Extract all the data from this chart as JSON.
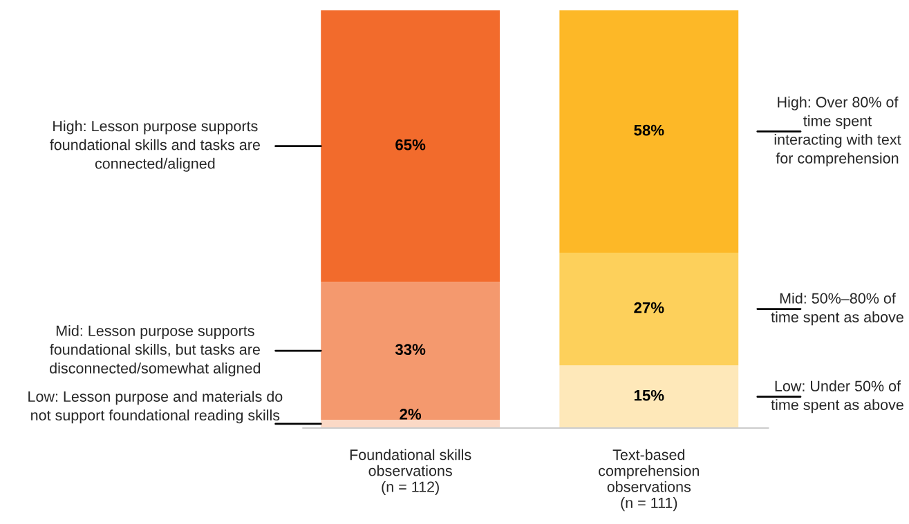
{
  "chart_data": {
    "type": "bar",
    "stacked": true,
    "categories": [
      "Foundational skills\nobservations\n(n = 112)",
      "Text-based\ncomprehension\nobservations\n(n = 111)"
    ],
    "series": [
      {
        "colors": [
          "#fbd9c6",
          "#fee8b9"
        ],
        "values": [
          2,
          15
        ],
        "value_labels": [
          "2%",
          "15%"
        ]
      },
      {
        "colors": [
          "#f4996e",
          "#fdd05b"
        ],
        "values": [
          33,
          27
        ],
        "value_labels": [
          "33%",
          "27%"
        ]
      },
      {
        "colors": [
          "#f26b2c",
          "#fdb827"
        ],
        "values": [
          65,
          58
        ],
        "value_labels": [
          "65%",
          "58%"
        ]
      }
    ],
    "ylim": [
      0,
      100
    ],
    "tick_labels": "x",
    "legend": false,
    "grid": false,
    "annotations": [
      "High: Lesson purpose supports\nfoundational skills and tasks are\nconnected/aligned",
      "Mid: Lesson purpose supports\nfoundational skills, but tasks are\ndisconnected/somewhat aligned",
      "Low: Lesson purpose and materials do\nnot support foundational reading skills",
      "High: Over 80% of\ntime spent\ninteracting with text\nfor comprehension",
      "Mid: 50%–80% of\ntime spent as above",
      "Low: Under 50% of\ntime spent as above"
    ]
  }
}
